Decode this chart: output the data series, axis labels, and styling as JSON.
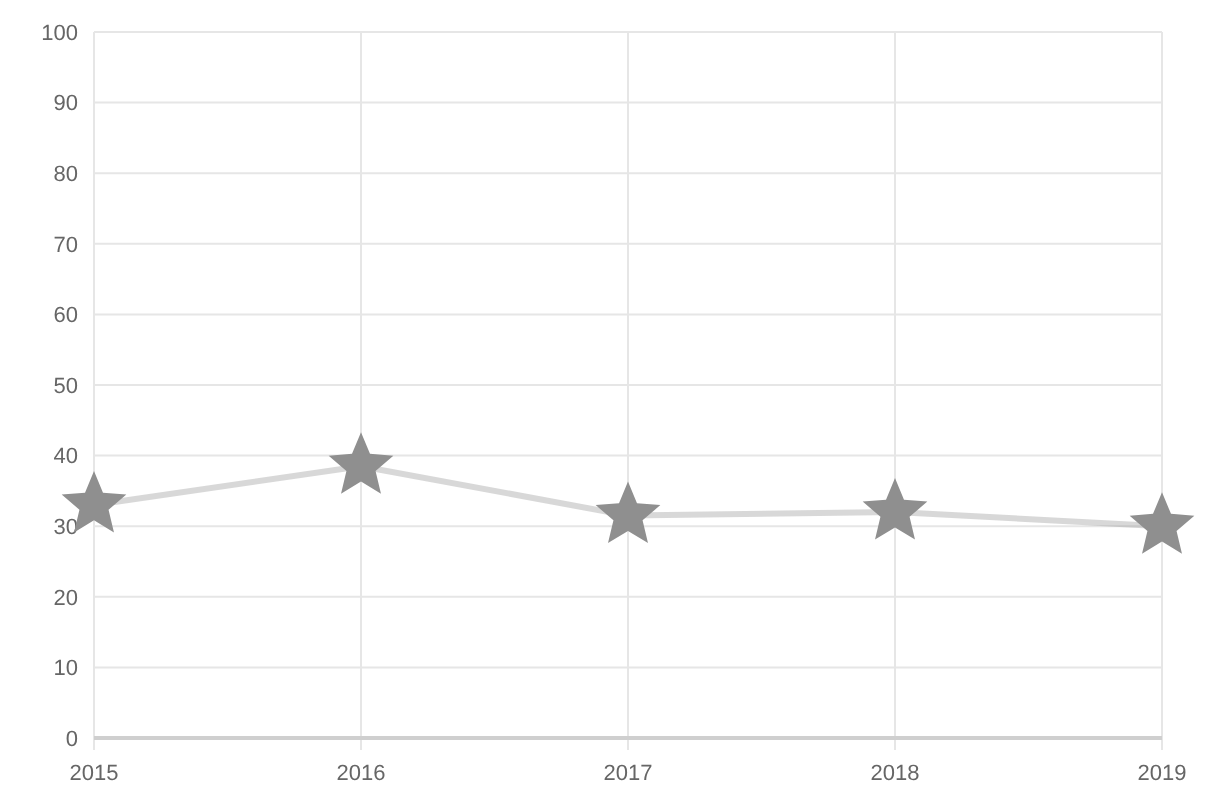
{
  "chart_data": {
    "type": "line",
    "x": [
      2015,
      2016,
      2017,
      2018,
      2019
    ],
    "xlim": [
      2015,
      2019
    ],
    "xticks": [
      2015,
      2016,
      2017,
      2018,
      2019
    ],
    "ylim": [
      0,
      100
    ],
    "yticks": [
      0,
      10,
      20,
      30,
      40,
      50,
      60,
      70,
      80,
      90,
      100
    ],
    "grid": true,
    "marker": "star",
    "series": [
      {
        "color": "#8f8f8f",
        "values": [
          33,
          38.5,
          31.5,
          32,
          30
        ]
      }
    ]
  }
}
